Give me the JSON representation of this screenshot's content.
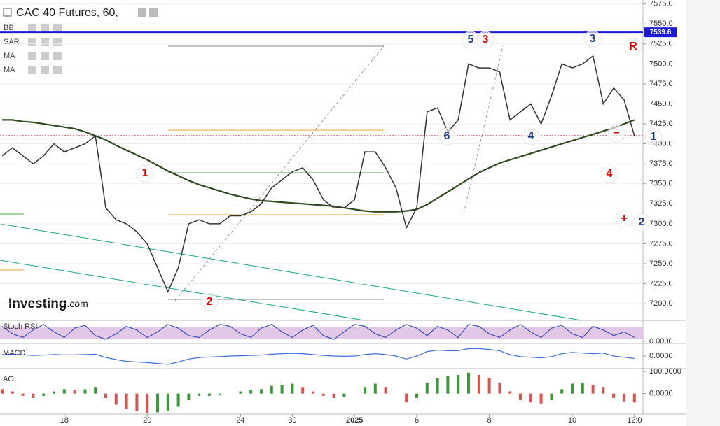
{
  "header": {
    "title": "CAC 40 Futures, 60,",
    "indicators": [
      "BB",
      "SAR",
      "MA"
    ],
    "brand": "Investing",
    "brand_suffix": ".com"
  },
  "chart_data": {
    "type": "line",
    "color": "#333333",
    "categories": [
      null,
      null,
      null,
      null,
      null,
      null,
      "18",
      null,
      null,
      null,
      null,
      null,
      null,
      null,
      "20",
      null,
      null,
      null,
      null,
      null,
      null,
      null,
      null,
      "24",
      null,
      null,
      null,
      null,
      "30",
      null,
      null,
      null,
      null,
      null,
      "2025",
      null,
      null,
      null,
      null,
      null,
      "6",
      null,
      null,
      null,
      null,
      null,
      null,
      "8",
      null,
      null,
      null,
      null,
      null,
      null,
      null,
      "10",
      null,
      null,
      null,
      null,
      null,
      "12:0"
    ],
    "values": [
      7385,
      7395,
      7385,
      7375,
      7385,
      7400,
      7390,
      7395,
      7400,
      7410,
      7320,
      7305,
      7300,
      7290,
      7275,
      7245,
      7215,
      7245,
      7300,
      7305,
      7300,
      7300,
      7310,
      7310,
      7315,
      7325,
      7345,
      7355,
      7365,
      7370,
      7355,
      7330,
      7320,
      7320,
      7330,
      7390,
      7390,
      7370,
      7345,
      7295,
      7320,
      7440,
      7445,
      7415,
      7430,
      7500,
      7495,
      7495,
      7490,
      7430,
      7440,
      7450,
      7425,
      7460,
      7500,
      7495,
      7500,
      7510,
      7450,
      7470,
      7455,
      7410
    ],
    "series": [
      {
        "name": "MA",
        "color": "#2f4a1f",
        "values": [
          7430,
          7430,
          7428,
          7427,
          7425,
          7423,
          7421,
          7419,
          7415,
          7410,
          7405,
          7398,
          7392,
          7386,
          7380,
          7373,
          7366,
          7360,
          7354,
          7349,
          7345,
          7341,
          7337,
          7334,
          7331,
          7329,
          7328,
          7327,
          7326,
          7325,
          7324,
          7323,
          7322,
          7320,
          7318,
          7316,
          7315,
          7315,
          7315,
          7316,
          7318,
          7324,
          7332,
          7340,
          7348,
          7356,
          7364,
          7370,
          7376,
          7380,
          7384,
          7388,
          7392,
          7396,
          7400,
          7404,
          7408,
          7412,
          7416,
          7420,
          7425,
          7430
        ]
      }
    ],
    "ylim": [
      7180,
      7580
    ],
    "yticks": [
      {
        "value": 7200,
        "label": "7200.0"
      },
      {
        "value": 7225,
        "label": "7225.0"
      },
      {
        "value": 7250,
        "label": "7250.0"
      },
      {
        "value": 7275,
        "label": "7275.0"
      },
      {
        "value": 7300,
        "label": "7300.0"
      },
      {
        "value": 7325,
        "label": "7325.0"
      },
      {
        "value": 7350,
        "label": "7350.0"
      },
      {
        "value": 7375,
        "label": "7375.0"
      },
      {
        "value": 7400,
        "label": "7400.0"
      },
      {
        "value": 7425,
        "label": "7425.0"
      },
      {
        "value": 7450,
        "label": "7450.0"
      },
      {
        "value": 7475,
        "label": "7475.0"
      },
      {
        "value": 7500,
        "label": "7500.0"
      },
      {
        "value": 7525,
        "label": "7525.0"
      },
      {
        "value": 7550,
        "label": "7550.0"
      },
      {
        "value": 7575,
        "label": "7575.0"
      }
    ],
    "grid": true,
    "price_line": 7539.6,
    "annotations": [
      "1",
      "2",
      "5",
      "3",
      "3",
      "R",
      "6",
      "4",
      "1",
      "4",
      "2",
      "+",
      "−"
    ],
    "panes": [
      {
        "name": "Stoch RSI",
        "type": "line",
        "color": "#3f51b5",
        "ylim": [
          -8,
          108
        ],
        "yticks": [
          {
            "value": 0,
            "label": "0.0000"
          }
        ],
        "values": [
          80,
          40,
          20,
          60,
          90,
          50,
          20,
          70,
          85,
          30,
          10,
          40,
          80,
          60,
          20,
          50,
          90,
          70,
          30,
          20,
          60,
          90,
          80,
          40,
          20,
          70,
          90,
          50,
          20,
          60,
          85,
          30,
          10,
          50,
          90,
          80,
          40,
          20,
          60,
          90,
          70,
          30,
          80,
          60,
          20,
          90,
          80,
          40,
          20,
          60,
          90,
          50,
          20,
          70,
          85,
          40,
          20,
          80,
          60,
          30,
          50,
          20
        ]
      },
      {
        "name": "MACD",
        "type": "line",
        "color": "#3f6fd8",
        "ylim": [
          -40,
          40
        ],
        "yticks": [
          {
            "value": 0,
            "label": "0.0000"
          }
        ],
        "values": [
          5,
          6,
          4,
          2,
          3,
          5,
          4,
          4,
          5,
          6,
          -5,
          -12,
          -18,
          -20,
          -22,
          -25,
          -28,
          -20,
          -10,
          -5,
          -3,
          -2,
          0,
          1,
          2,
          3,
          6,
          8,
          9,
          8,
          5,
          2,
          0,
          -1,
          0,
          5,
          8,
          5,
          0,
          -10,
          0,
          15,
          20,
          18,
          18,
          25,
          25,
          22,
          18,
          5,
          -2,
          -4,
          -6,
          -2,
          8,
          12,
          10,
          8,
          10,
          0,
          -4,
          -8
        ]
      },
      {
        "name": "AO",
        "type": "bar",
        "color": "#d9534f",
        "color_up": "#3a9a3a",
        "ylim": [
          -90,
          110
        ],
        "yticks": [
          {
            "value": 0,
            "label": "0.0000"
          },
          {
            "value": 100,
            "label": "100.0000"
          }
        ],
        "values": [
          20,
          10,
          -10,
          -20,
          -10,
          10,
          20,
          15,
          20,
          30,
          -20,
          -50,
          -70,
          -80,
          -90,
          -85,
          -80,
          -60,
          -30,
          -10,
          -10,
          -5,
          0,
          10,
          15,
          20,
          35,
          40,
          45,
          30,
          10,
          -10,
          -20,
          -15,
          0,
          30,
          45,
          30,
          0,
          -40,
          -20,
          50,
          70,
          80,
          85,
          95,
          85,
          70,
          50,
          10,
          -30,
          -40,
          -45,
          -30,
          20,
          45,
          50,
          40,
          30,
          -20,
          -35,
          -40
        ]
      }
    ]
  }
}
